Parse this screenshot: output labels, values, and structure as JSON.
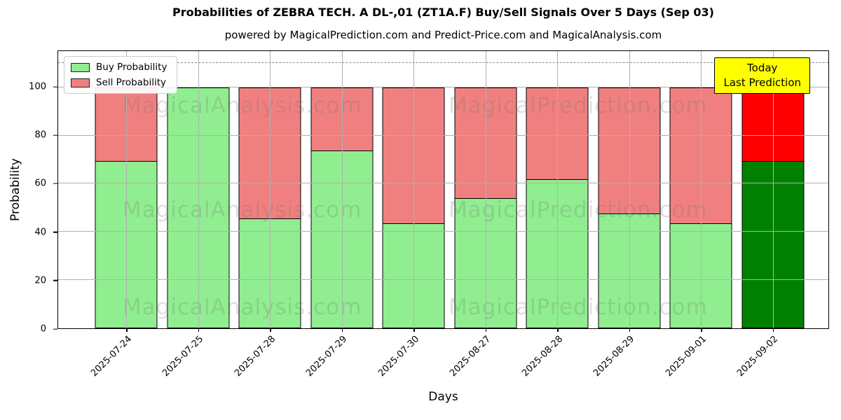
{
  "header": {
    "title": "Probabilities of ZEBRA TECH. A  DL-,01 (ZT1A.F) Buy/Sell Signals Over 5 Days (Sep 03)",
    "subtitle": "powered by MagicalPrediction.com and Predict-Price.com and MagicalAnalysis.com"
  },
  "legend": {
    "items": [
      {
        "label": "Buy Probability",
        "color": "#90EE90"
      },
      {
        "label": "Sell Probability",
        "color": "#F08080"
      }
    ]
  },
  "annotation_box": {
    "line1": "Today",
    "line2": "Last Prediction",
    "bg_color": "#FFFF00",
    "border_color": "#000000"
  },
  "watermarks": {
    "left_text": "MagicalAnalysis.com",
    "right_text": "MagicalPrediction.com"
  },
  "chart_data": {
    "type": "bar",
    "stacked": true,
    "title": "Probabilities of ZEBRA TECH. A  DL-,01 (ZT1A.F) Buy/Sell Signals Over 5 Days (Sep 03)",
    "xlabel": "Days",
    "ylabel": "Probability",
    "categories": [
      "2025-07-24",
      "2025-07-25",
      "2025-07-28",
      "2025-07-29",
      "2025-07-30",
      "2025-08-27",
      "2025-08-28",
      "2025-08-29",
      "2025-09-01",
      "2025-09-02"
    ],
    "series": [
      {
        "name": "Buy Probability",
        "values": [
          69.5,
          100,
          45.5,
          74,
          43.5,
          54,
          62,
          47.5,
          43.5,
          69.5
        ],
        "color": "#90EE90",
        "today_color": "#008000"
      },
      {
        "name": "Sell Probability",
        "values": [
          30.5,
          0,
          54.5,
          26,
          56.5,
          46,
          38,
          52.5,
          56.5,
          30.5
        ],
        "color": "#F08080",
        "today_color": "#FF0000"
      }
    ],
    "today_index": 9,
    "y_ticks": [
      0,
      20,
      40,
      60,
      80,
      100
    ],
    "ylim": [
      0,
      115
    ],
    "dashed_line_y": 110,
    "grid": true,
    "grid_color": "#b0b0b0",
    "bar_edge_color": "#000000",
    "legend_position": "upper left"
  }
}
